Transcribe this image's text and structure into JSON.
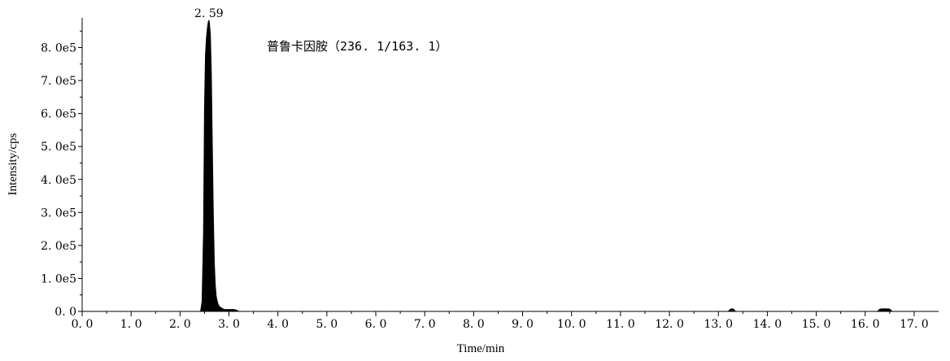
{
  "chart_data": {
    "type": "area",
    "xlabel": "Time/min",
    "ylabel": "Intensity/cps",
    "xlim": [
      0.0,
      17.5
    ],
    "ylim": [
      0.0,
      890000
    ],
    "x_ticks": [
      "0. 0",
      "1. 0",
      "2. 0",
      "3. 0",
      "4. 0",
      "5. 0",
      "6. 0",
      "7. 0",
      "8. 0",
      "9. 0",
      "10. 0",
      "11. 0",
      "12. 0",
      "13. 0",
      "14. 0",
      "15. 0",
      "16. 0",
      "17. 0"
    ],
    "y_ticks": [
      "0. 0",
      "1. 0e5",
      "2. 0e5",
      "3. 0e5",
      "4. 0e5",
      "5. 0e5",
      "6. 0e5",
      "7. 0e5",
      "8. 0e5"
    ],
    "annotation": "普鲁卡因胺（236. 1/163. 1）",
    "peak_label": "2. 59",
    "grid": false,
    "series": [
      {
        "x": [
          0.0,
          2.3,
          2.42,
          2.45,
          2.48,
          2.5,
          2.52,
          2.54,
          2.56,
          2.58,
          2.59,
          2.6,
          2.62,
          2.64,
          2.66,
          2.68,
          2.7,
          2.72,
          2.74,
          2.77,
          2.8,
          2.85,
          2.9,
          3.0,
          3.1,
          3.15,
          3.2,
          13.2,
          13.25,
          13.3,
          13.35,
          16.25,
          16.3,
          16.4,
          16.5,
          16.55,
          17.5
        ],
        "y": [
          0,
          0,
          0,
          30000,
          240000,
          620000,
          780000,
          830000,
          860000,
          880000,
          882000,
          875000,
          840000,
          720000,
          500000,
          300000,
          150000,
          80000,
          45000,
          25000,
          15000,
          10000,
          6000,
          6000,
          6000,
          4000,
          0,
          0,
          7000,
          8000,
          0,
          0,
          7000,
          8000,
          7000,
          0,
          0
        ]
      }
    ]
  }
}
